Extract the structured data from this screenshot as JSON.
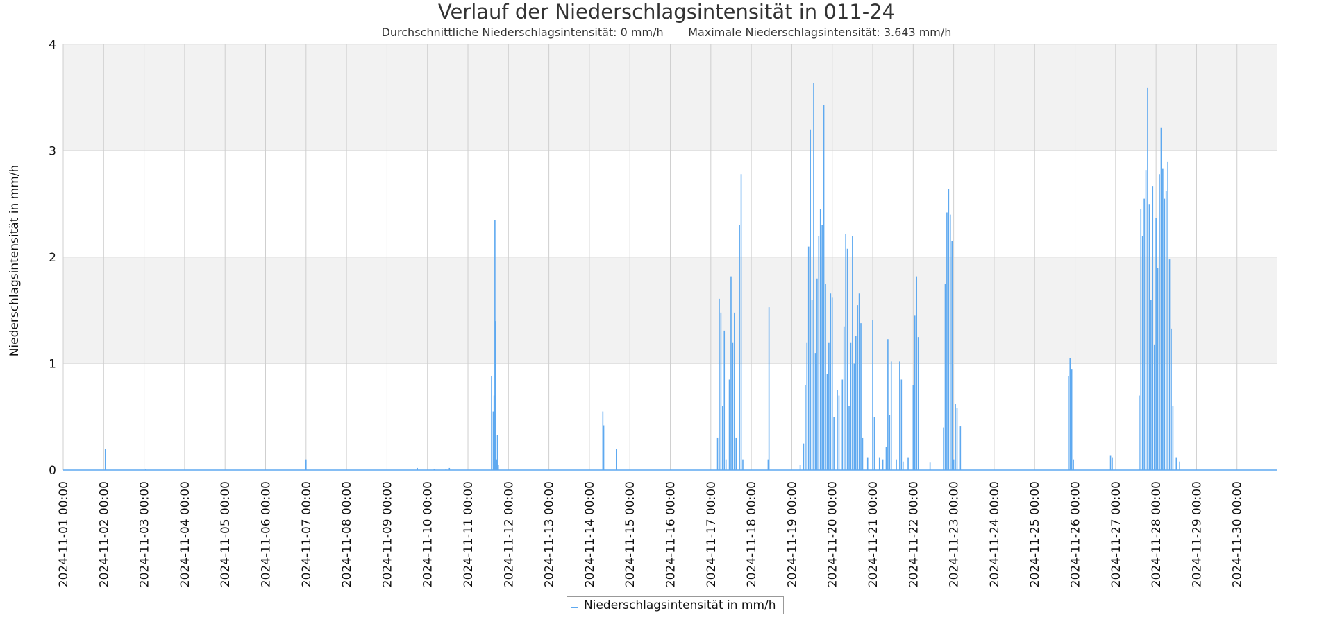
{
  "chart_data": {
    "type": "line",
    "title": "Verlauf der Niederschlagsintensität in 011-24",
    "subtitle": "Durchschnittliche Niederschlagsintensität: 0 mm/h       Maximale Niederschlagsintensität: 3.643 mm/h",
    "ylabel": "Niederschlagsintensität in mm/h",
    "xlabel": "",
    "ylim": [
      0,
      4
    ],
    "yticks": [
      "0",
      "1",
      "2",
      "3",
      "4"
    ],
    "xlim": [
      "2024-11-01 00:00",
      "2024-11-30 23:59"
    ],
    "xticks": [
      "2024-11-01 00:00",
      "2024-11-02 00:00",
      "2024-11-03 00:00",
      "2024-11-04 00:00",
      "2024-11-05 00:00",
      "2024-11-06 00:00",
      "2024-11-07 00:00",
      "2024-11-08 00:00",
      "2024-11-09 00:00",
      "2024-11-10 00:00",
      "2024-11-11 00:00",
      "2024-11-12 00:00",
      "2024-11-13 00:00",
      "2024-11-14 00:00",
      "2024-11-15 00:00",
      "2024-11-16 00:00",
      "2024-11-17 00:00",
      "2024-11-18 00:00",
      "2024-11-19 00:00",
      "2024-11-20 00:00",
      "2024-11-21 00:00",
      "2024-11-22 00:00",
      "2024-11-23 00:00",
      "2024-11-24 00:00",
      "2024-11-25 00:00",
      "2024-11-26 00:00",
      "2024-11-27 00:00",
      "2024-11-28 00:00",
      "2024-11-29 00:00",
      "2024-11-30 00:00"
    ],
    "grid": true,
    "legend_position": "bottom-center",
    "line_color": "#5ea9f0",
    "band_color": "#f2f2f2",
    "series": [
      {
        "name": "Niederschlagsintensität in mm/h",
        "points": [
          [
            "2024-11-02 01:00",
            0.2
          ],
          [
            "2024-11-03 01:00",
            0.01
          ],
          [
            "2024-11-07 00:00",
            0.1
          ],
          [
            "2024-11-09 18:00",
            0.02
          ],
          [
            "2024-11-10 04:00",
            0.01
          ],
          [
            "2024-11-10 11:00",
            0.01
          ],
          [
            "2024-11-10 13:00",
            0.02
          ],
          [
            "2024-11-11 14:00",
            0.88
          ],
          [
            "2024-11-11 15:00",
            0.55
          ],
          [
            "2024-11-11 15:30",
            0.7
          ],
          [
            "2024-11-11 16:00",
            2.35
          ],
          [
            "2024-11-11 16:20",
            1.4
          ],
          [
            "2024-11-11 17:00",
            0.1
          ],
          [
            "2024-11-11 17:30",
            0.33
          ],
          [
            "2024-11-11 18:00",
            0.05
          ],
          [
            "2024-11-14 08:00",
            0.55
          ],
          [
            "2024-11-14 08:30",
            0.42
          ],
          [
            "2024-11-14 16:00",
            0.2
          ],
          [
            "2024-11-17 04:00",
            0.3
          ],
          [
            "2024-11-17 05:00",
            1.61
          ],
          [
            "2024-11-17 06:00",
            1.48
          ],
          [
            "2024-11-17 07:00",
            0.6
          ],
          [
            "2024-11-17 08:00",
            1.31
          ],
          [
            "2024-11-17 09:00",
            0.1
          ],
          [
            "2024-11-17 11:00",
            0.85
          ],
          [
            "2024-11-17 12:00",
            1.82
          ],
          [
            "2024-11-17 13:00",
            1.2
          ],
          [
            "2024-11-17 14:00",
            1.48
          ],
          [
            "2024-11-17 15:00",
            0.3
          ],
          [
            "2024-11-17 17:00",
            2.3
          ],
          [
            "2024-11-17 18:00",
            2.78
          ],
          [
            "2024-11-17 19:00",
            0.1
          ],
          [
            "2024-11-18 10:00",
            0.1
          ],
          [
            "2024-11-18 10:30",
            1.53
          ],
          [
            "2024-11-19 05:00",
            0.05
          ],
          [
            "2024-11-19 07:00",
            0.25
          ],
          [
            "2024-11-19 08:00",
            0.8
          ],
          [
            "2024-11-19 09:00",
            1.2
          ],
          [
            "2024-11-19 10:00",
            2.1
          ],
          [
            "2024-11-19 11:00",
            3.2
          ],
          [
            "2024-11-19 12:00",
            1.6
          ],
          [
            "2024-11-19 13:00",
            3.64
          ],
          [
            "2024-11-19 14:00",
            1.1
          ],
          [
            "2024-11-19 15:00",
            1.8
          ],
          [
            "2024-11-19 16:00",
            2.2
          ],
          [
            "2024-11-19 17:00",
            2.45
          ],
          [
            "2024-11-19 18:00",
            2.3
          ],
          [
            "2024-11-19 19:00",
            3.43
          ],
          [
            "2024-11-19 20:00",
            1.75
          ],
          [
            "2024-11-19 21:00",
            0.9
          ],
          [
            "2024-11-19 22:00",
            1.2
          ],
          [
            "2024-11-19 23:00",
            1.66
          ],
          [
            "2024-11-20 00:00",
            1.62
          ],
          [
            "2024-11-20 01:00",
            0.5
          ],
          [
            "2024-11-20 03:00",
            0.75
          ],
          [
            "2024-11-20 04:00",
            0.7
          ],
          [
            "2024-11-20 06:00",
            0.85
          ],
          [
            "2024-11-20 07:00",
            1.35
          ],
          [
            "2024-11-20 08:00",
            2.22
          ],
          [
            "2024-11-20 09:00",
            2.08
          ],
          [
            "2024-11-20 10:00",
            0.6
          ],
          [
            "2024-11-20 11:00",
            1.2
          ],
          [
            "2024-11-20 12:00",
            2.2
          ],
          [
            "2024-11-20 13:00",
            1.0
          ],
          [
            "2024-11-20 14:00",
            1.26
          ],
          [
            "2024-11-20 15:00",
            1.55
          ],
          [
            "2024-11-20 16:00",
            1.66
          ],
          [
            "2024-11-20 17:00",
            1.38
          ],
          [
            "2024-11-20 18:00",
            0.3
          ],
          [
            "2024-11-20 21:00",
            0.12
          ],
          [
            "2024-11-21 00:00",
            1.41
          ],
          [
            "2024-11-21 01:00",
            0.5
          ],
          [
            "2024-11-21 04:00",
            0.12
          ],
          [
            "2024-11-21 06:00",
            0.1
          ],
          [
            "2024-11-21 08:00",
            0.22
          ],
          [
            "2024-11-21 09:00",
            1.23
          ],
          [
            "2024-11-21 10:00",
            0.52
          ],
          [
            "2024-11-21 11:00",
            1.02
          ],
          [
            "2024-11-21 14:00",
            0.1
          ],
          [
            "2024-11-21 16:00",
            1.02
          ],
          [
            "2024-11-21 17:00",
            0.85
          ],
          [
            "2024-11-21 18:00",
            0.08
          ],
          [
            "2024-11-21 21:00",
            0.12
          ],
          [
            "2024-11-22 00:00",
            0.8
          ],
          [
            "2024-11-22 01:00",
            1.45
          ],
          [
            "2024-11-22 02:00",
            1.82
          ],
          [
            "2024-11-22 03:00",
            1.25
          ],
          [
            "2024-11-22 10:00",
            0.07
          ],
          [
            "2024-11-22 18:00",
            0.4
          ],
          [
            "2024-11-22 19:00",
            1.75
          ],
          [
            "2024-11-22 20:00",
            2.42
          ],
          [
            "2024-11-22 21:00",
            2.64
          ],
          [
            "2024-11-22 22:00",
            2.4
          ],
          [
            "2024-11-22 23:00",
            2.15
          ],
          [
            "2024-11-23 00:00",
            0.1
          ],
          [
            "2024-11-23 01:00",
            0.62
          ],
          [
            "2024-11-23 02:00",
            0.58
          ],
          [
            "2024-11-23 04:00",
            0.41
          ],
          [
            "2024-11-25 20:00",
            0.88
          ],
          [
            "2024-11-25 21:00",
            1.05
          ],
          [
            "2024-11-25 22:00",
            0.95
          ],
          [
            "2024-11-25 23:00",
            0.1
          ],
          [
            "2024-11-26 21:00",
            0.14
          ],
          [
            "2024-11-26 22:00",
            0.12
          ],
          [
            "2024-11-27 14:00",
            0.7
          ],
          [
            "2024-11-27 15:00",
            2.45
          ],
          [
            "2024-11-27 16:00",
            2.2
          ],
          [
            "2024-11-27 17:00",
            2.55
          ],
          [
            "2024-11-27 18:00",
            2.82
          ],
          [
            "2024-11-27 19:00",
            3.59
          ],
          [
            "2024-11-27 20:00",
            2.5
          ],
          [
            "2024-11-27 21:00",
            1.6
          ],
          [
            "2024-11-27 22:00",
            2.67
          ],
          [
            "2024-11-27 23:00",
            1.18
          ],
          [
            "2024-11-28 00:00",
            2.37
          ],
          [
            "2024-11-28 01:00",
            1.9
          ],
          [
            "2024-11-28 02:00",
            2.78
          ],
          [
            "2024-11-28 03:00",
            3.22
          ],
          [
            "2024-11-28 04:00",
            2.83
          ],
          [
            "2024-11-28 05:00",
            2.55
          ],
          [
            "2024-11-28 06:00",
            2.62
          ],
          [
            "2024-11-28 07:00",
            2.9
          ],
          [
            "2024-11-28 08:00",
            1.98
          ],
          [
            "2024-11-28 09:00",
            1.33
          ],
          [
            "2024-11-28 10:00",
            0.6
          ],
          [
            "2024-11-28 12:00",
            0.12
          ],
          [
            "2024-11-28 14:00",
            0.08
          ]
        ]
      }
    ]
  }
}
